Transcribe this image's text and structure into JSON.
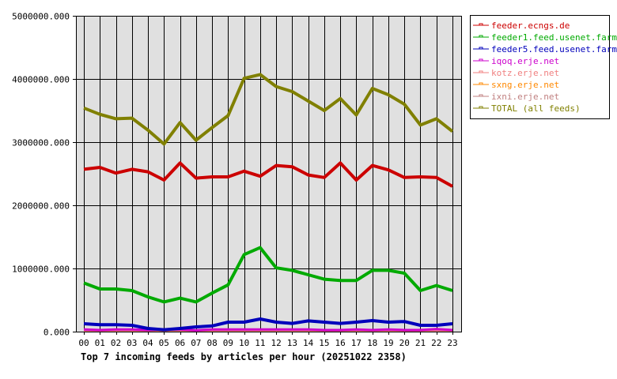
{
  "chart_data": {
    "type": "line",
    "title": "Top 7 incoming feeds by articles per hour (20251022 2358)",
    "xlabel": "",
    "ylabel": "",
    "ylim": [
      0,
      5000000
    ],
    "grid": true,
    "legend_position": "right",
    "y_ticks": [
      "0.000",
      "1000000.000",
      "2000000.000",
      "3000000.000",
      "4000000.000",
      "5000000.000"
    ],
    "y_tick_values": [
      0,
      1000000,
      2000000,
      3000000,
      4000000,
      5000000
    ],
    "categories": [
      "00",
      "01",
      "02",
      "03",
      "04",
      "05",
      "06",
      "07",
      "08",
      "09",
      "10",
      "11",
      "12",
      "13",
      "14",
      "15",
      "16",
      "17",
      "18",
      "19",
      "20",
      "21",
      "22",
      "23"
    ],
    "series": [
      {
        "name": "feeder.ecngs.de",
        "color": "#cc0000",
        "values": [
          2570000,
          2600000,
          2510000,
          2570000,
          2530000,
          2400000,
          2670000,
          2430000,
          2450000,
          2450000,
          2540000,
          2460000,
          2630000,
          2610000,
          2480000,
          2440000,
          2670000,
          2400000,
          2630000,
          2560000,
          2440000,
          2450000,
          2440000,
          2300000
        ]
      },
      {
        "name": "feeder1.feed.usenet.farm",
        "color": "#00aa00",
        "values": [
          770000,
          675000,
          675000,
          650000,
          550000,
          470000,
          530000,
          470000,
          610000,
          740000,
          1220000,
          1330000,
          1010000,
          970000,
          900000,
          830000,
          810000,
          810000,
          970000,
          970000,
          925000,
          650000,
          730000,
          650000
        ]
      },
      {
        "name": "feeder5.feed.usenet.farm",
        "color": "#0000bb",
        "values": [
          125000,
          110000,
          110000,
          100000,
          50000,
          30000,
          50000,
          75000,
          90000,
          150000,
          150000,
          200000,
          150000,
          130000,
          170000,
          150000,
          130000,
          150000,
          175000,
          150000,
          160000,
          100000,
          100000,
          125000
        ]
      },
      {
        "name": "iqoq.erje.net",
        "color": "#cc00cc",
        "values": [
          35000,
          25000,
          35000,
          35000,
          25000,
          35000,
          35000,
          20000,
          35000,
          35000,
          35000,
          35000,
          35000,
          35000,
          35000,
          25000,
          25000,
          35000,
          25000,
          35000,
          25000,
          25000,
          40000,
          25000
        ]
      },
      {
        "name": "kotz.erje.net",
        "color": "#f08080",
        "values": [
          20000,
          20000,
          20000,
          20000,
          20000,
          20000,
          20000,
          20000,
          20000,
          20000,
          20000,
          20000,
          20000,
          20000,
          20000,
          20000,
          20000,
          20000,
          20000,
          20000,
          20000,
          20000,
          20000,
          20000
        ]
      },
      {
        "name": "sxng.erje.net",
        "color": "#ff8800",
        "values": [
          8000,
          8000,
          8000,
          8000,
          8000,
          8000,
          8000,
          8000,
          8000,
          8000,
          8000,
          8000,
          8000,
          8000,
          8000,
          8000,
          8000,
          8000,
          8000,
          8000,
          8000,
          8000,
          25000,
          8000
        ]
      },
      {
        "name": "ixni.erje.net",
        "color": "#c08080",
        "values": [
          12000,
          12000,
          12000,
          12000,
          12000,
          12000,
          12000,
          12000,
          12000,
          12000,
          12000,
          12000,
          12000,
          12000,
          12000,
          12000,
          12000,
          12000,
          12000,
          12000,
          12000,
          12000,
          12000,
          12000
        ]
      },
      {
        "name": "TOTAL (all feeds)",
        "color": "#808000",
        "values": [
          3540000,
          3440000,
          3370000,
          3380000,
          3190000,
          2970000,
          3310000,
          3030000,
          3230000,
          3420000,
          4010000,
          4070000,
          3880000,
          3800000,
          3650000,
          3500000,
          3690000,
          3430000,
          3850000,
          3750000,
          3600000,
          3270000,
          3370000,
          3170000
        ]
      }
    ]
  }
}
